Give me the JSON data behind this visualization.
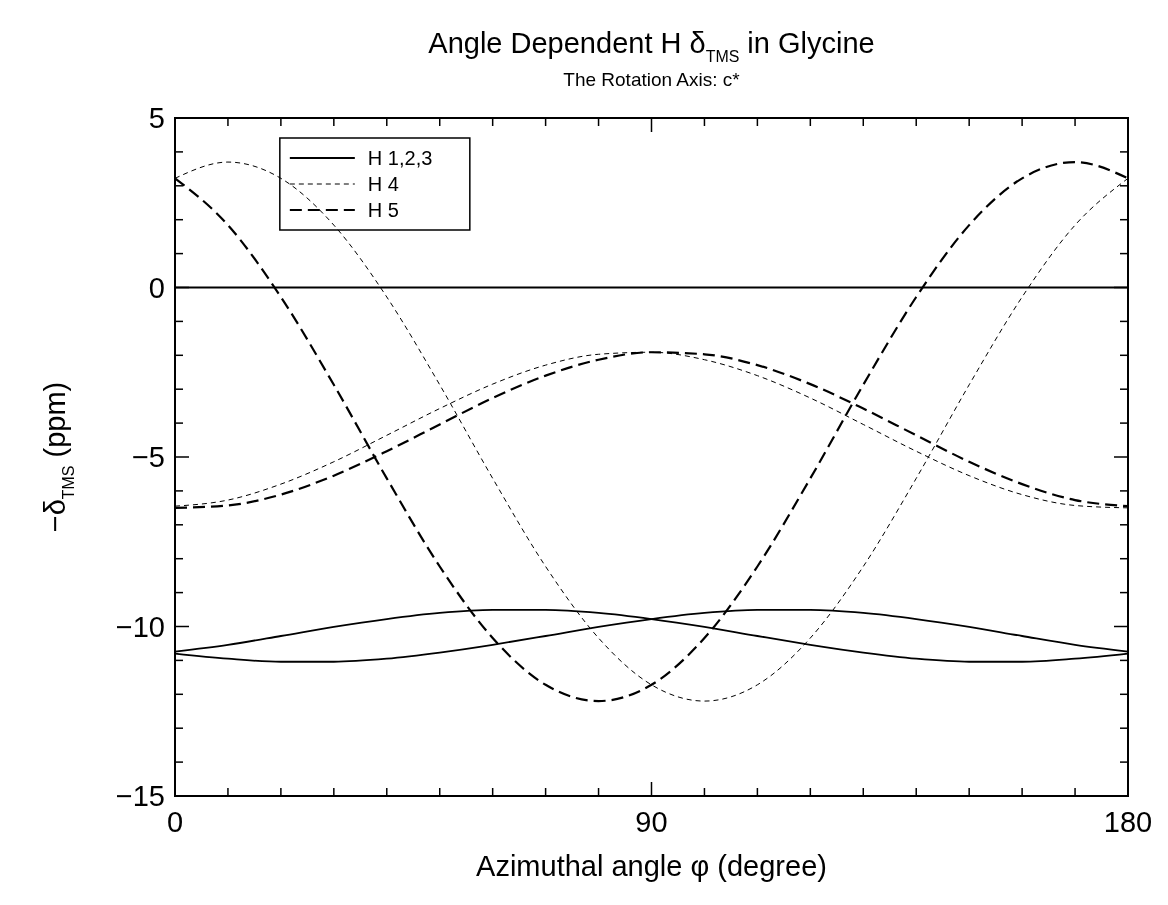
{
  "chart_data": {
    "type": "line",
    "title": "Angle Dependent H δ$_{TMS}$ in Glycine",
    "subtitle": "The Rotation Axis: c*",
    "xlabel": "Azimuthal angle φ (degree)",
    "ylabel": "−δ$_{TMS}$ (ppm)",
    "x": [
      0,
      10,
      20,
      30,
      40,
      50,
      60,
      70,
      80,
      90,
      100,
      110,
      120,
      130,
      140,
      150,
      160,
      170,
      180
    ],
    "series": [
      {
        "name": "H 1,2,3",
        "color": "#000000",
        "line_style": "solid",
        "x": [
          0,
          180
        ],
        "values": [
          0,
          0
        ]
      },
      {
        "color": "#000000",
        "line_style": "solid",
        "values": [
          -10.74,
          -10.54,
          -10.28,
          -10.01,
          -9.78,
          -9.6,
          -9.51,
          -9.51,
          -9.6,
          -9.78,
          -10.01,
          -10.28,
          -10.54,
          -10.77,
          -10.95,
          -11.04,
          -11.04,
          -10.95,
          -10.8
        ]
      },
      {
        "color": "#000000",
        "line_style": "solid",
        "values": [
          -10.8,
          -10.95,
          -11.04,
          -11.04,
          -10.95,
          -10.77,
          -10.54,
          -10.28,
          -10.01,
          -9.78,
          -9.6,
          -9.51,
          -9.51,
          -9.6,
          -9.78,
          -10.01,
          -10.28,
          -10.54,
          -10.74
        ]
      },
      {
        "name": "H 4",
        "color": "#000000",
        "line_style": "dotted",
        "values": [
          3.22,
          3.7,
          3.22,
          1.84,
          -0.28,
          -2.87,
          -5.63,
          -8.23,
          -10.34,
          -11.72,
          -12.2,
          -11.72,
          -10.34,
          -8.23,
          -5.63,
          -2.87,
          -0.28,
          1.84,
          3.22
        ]
      },
      {
        "color": "#000000",
        "line_style": "dotted",
        "values": [
          -6.45,
          -6.27,
          -5.8,
          -5.14,
          -4.36,
          -3.57,
          -2.85,
          -2.29,
          -1.97,
          -1.91,
          -2.13,
          -2.6,
          -3.26,
          -4.04,
          -4.83,
          -5.55,
          -6.11,
          -6.43,
          -6.5
        ]
      },
      {
        "name": "H 5",
        "color": "#000000",
        "line_style": "dashed",
        "values": [
          3.22,
          1.84,
          -0.28,
          -2.87,
          -5.63,
          -8.23,
          -10.34,
          -11.72,
          -12.2,
          -11.72,
          -10.34,
          -8.23,
          -5.63,
          -2.87,
          -0.28,
          1.84,
          3.22,
          3.7,
          3.22
        ]
      },
      {
        "color": "#000000",
        "line_style": "dashed",
        "values": [
          -6.5,
          -6.43,
          -6.11,
          -5.55,
          -4.83,
          -4.04,
          -3.26,
          -2.6,
          -2.13,
          -1.91,
          -1.97,
          -2.29,
          -2.85,
          -3.57,
          -4.36,
          -5.14,
          -5.8,
          -6.27,
          -6.45
        ]
      }
    ],
    "xlim": [
      0,
      180
    ],
    "xticks": [
      0,
      {
        "value": 10,
        "label": null
      },
      {
        "value": 20,
        "label": null
      },
      {
        "value": 30,
        "label": null
      },
      {
        "value": 40,
        "label": null
      },
      {
        "value": 50,
        "label": null
      },
      {
        "value": 60,
        "label": null
      },
      {
        "value": 70,
        "label": null
      },
      {
        "value": 80,
        "label": null
      },
      90,
      {
        "value": 100,
        "label": null
      },
      {
        "value": 110,
        "label": null
      },
      {
        "value": 120,
        "label": null
      },
      {
        "value": 130,
        "label": null
      },
      {
        "value": 140,
        "label": null
      },
      {
        "value": 150,
        "label": null
      },
      {
        "value": 160,
        "label": null
      },
      {
        "value": 170,
        "label": null
      },
      180
    ],
    "ylim": [
      -15,
      5
    ],
    "yticks": [
      {
        "value": -15,
        "label": "−15"
      },
      {
        "value": -14,
        "label": null
      },
      {
        "value": -13,
        "label": null
      },
      {
        "value": -12,
        "label": null
      },
      {
        "value": -11,
        "label": null
      },
      {
        "value": -10,
        "label": "−10"
      },
      {
        "value": -9,
        "label": null
      },
      {
        "value": -8,
        "label": null
      },
      {
        "value": -7,
        "label": null
      },
      {
        "value": -6,
        "label": null
      },
      {
        "value": -5,
        "label": "−5"
      },
      {
        "value": -4,
        "label": null
      },
      {
        "value": -3,
        "label": null
      },
      {
        "value": -2,
        "label": null
      },
      {
        "value": -1,
        "label": null
      },
      0,
      {
        "value": 1,
        "label": null
      },
      {
        "value": 2,
        "label": null
      },
      {
        "value": 3,
        "label": null
      },
      {
        "value": 4,
        "label": null
      },
      5
    ],
    "grid": false,
    "legend": "top left"
  }
}
